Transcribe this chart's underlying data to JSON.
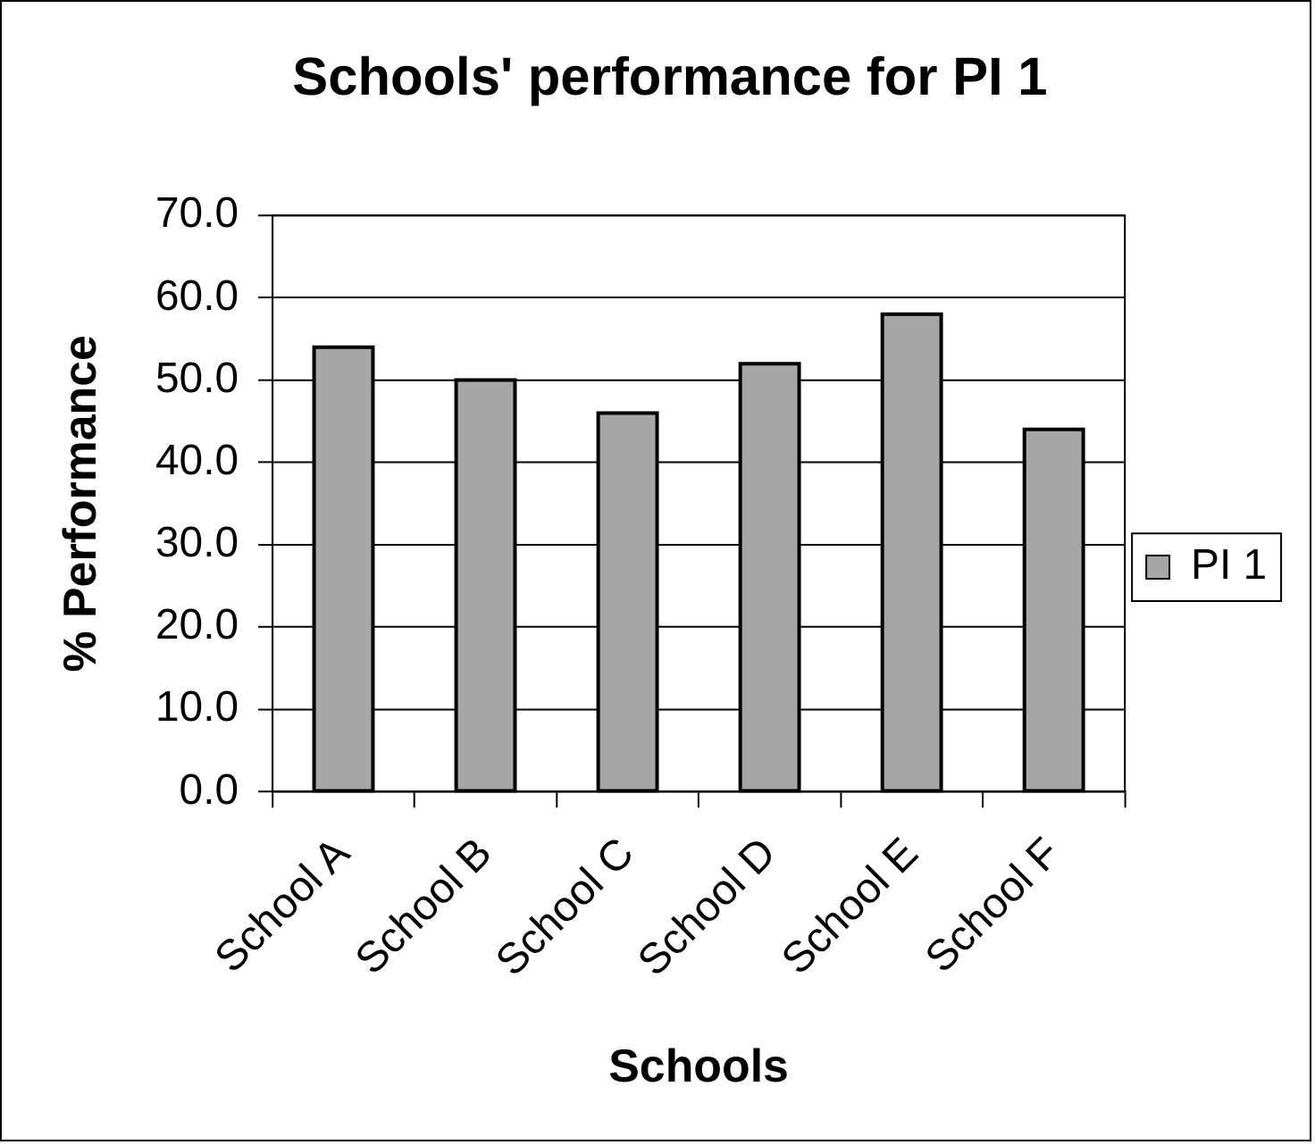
{
  "chart_data": {
    "type": "bar",
    "title": "Schools' performance for PI 1",
    "xlabel": "Schools",
    "ylabel": "% Performance",
    "categories": [
      "School A",
      "School B",
      "School C",
      "School D",
      "School E",
      "School F"
    ],
    "series": [
      {
        "name": "PI 1",
        "color": "#a6a6a6",
        "values": [
          54,
          50,
          46,
          52,
          58,
          44
        ]
      }
    ],
    "ylim": [
      0,
      70
    ],
    "yticks": [
      {
        "value": 0,
        "label": "0.0"
      },
      {
        "value": 10,
        "label": "10.0"
      },
      {
        "value": 20,
        "label": "20.0"
      },
      {
        "value": 30,
        "label": "30.0"
      },
      {
        "value": 40,
        "label": "40.0"
      },
      {
        "value": 50,
        "label": "50.0"
      },
      {
        "value": 60,
        "label": "60.0"
      },
      {
        "value": 70,
        "label": "70.0"
      }
    ],
    "grid": "y",
    "legend": "right"
  }
}
